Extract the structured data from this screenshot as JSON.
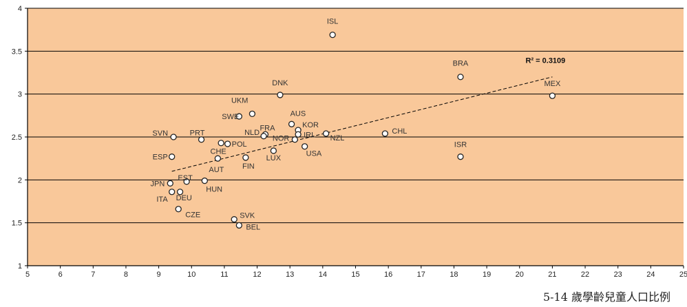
{
  "chart_data": {
    "type": "scatter",
    "title": "",
    "xlabel": "5-14 歲學齡兒童人口比例",
    "ylabel": "",
    "xlim": [
      5,
      25
    ],
    "ylim": [
      1,
      4
    ],
    "xticks": [
      5,
      6,
      7,
      8,
      9,
      10,
      11,
      12,
      13,
      14,
      15,
      16,
      17,
      18,
      19,
      20,
      21,
      22,
      23,
      24,
      25
    ],
    "yticks": [
      1,
      1.5,
      2,
      2.5,
      3,
      3.5,
      4
    ],
    "ytick_labels": [
      "1",
      "1.5",
      "2",
      "2.5",
      "3",
      "3.5",
      "4"
    ],
    "grid": "horizontal",
    "colors": {
      "plot_bg": "#f9c89a",
      "grid": "#000000",
      "marker_fill": "#ffffff",
      "marker_edge": "#222222",
      "trend": "#000000"
    },
    "trendline": {
      "x": [
        9.4,
        21.0
      ],
      "y": [
        2.1,
        3.2
      ],
      "label": "R² = 0.3109"
    },
    "points": [
      {
        "label": "ISL",
        "x": 14.3,
        "y": 3.69
      },
      {
        "label": "BRA",
        "x": 18.2,
        "y": 3.2
      },
      {
        "label": "MEX",
        "x": 21.0,
        "y": 2.98
      },
      {
        "label": "DNK",
        "x": 12.7,
        "y": 2.99
      },
      {
        "label": "UKM",
        "x": 11.85,
        "y": 2.77
      },
      {
        "label": "SWE",
        "x": 11.45,
        "y": 2.74
      },
      {
        "label": "AUS",
        "x": 13.05,
        "y": 2.65
      },
      {
        "label": "KOR",
        "x": 13.25,
        "y": 2.58
      },
      {
        "label": "FRA",
        "x": 12.25,
        "y": 2.53
      },
      {
        "label": "NLD",
        "x": 12.2,
        "y": 2.51
      },
      {
        "label": "IRL",
        "x": 13.25,
        "y": 2.53
      },
      {
        "label": "NZL",
        "x": 14.1,
        "y": 2.54
      },
      {
        "label": "CHL",
        "x": 15.9,
        "y": 2.54
      },
      {
        "label": "SVN",
        "x": 9.45,
        "y": 2.5
      },
      {
        "label": "PRT",
        "x": 10.3,
        "y": 2.47
      },
      {
        "label": "POL",
        "x": 11.1,
        "y": 2.42
      },
      {
        "label": "CHE",
        "x": 10.9,
        "y": 2.43
      },
      {
        "label": "NOR",
        "x": 13.15,
        "y": 2.47
      },
      {
        "label": "USA",
        "x": 13.45,
        "y": 2.39
      },
      {
        "label": "LUX",
        "x": 12.5,
        "y": 2.34
      },
      {
        "label": "ISR",
        "x": 18.2,
        "y": 2.27
      },
      {
        "label": "ESP",
        "x": 9.4,
        "y": 2.27
      },
      {
        "label": "AUT",
        "x": 10.8,
        "y": 2.25
      },
      {
        "label": "FIN",
        "x": 11.65,
        "y": 2.26
      },
      {
        "label": "EST",
        "x": 9.85,
        "y": 1.98
      },
      {
        "label": "HUN",
        "x": 10.4,
        "y": 1.99
      },
      {
        "label": "JPN",
        "x": 9.35,
        "y": 1.96
      },
      {
        "label": "ITA",
        "x": 9.4,
        "y": 1.86
      },
      {
        "label": "DEU",
        "x": 9.65,
        "y": 1.86
      },
      {
        "label": "CZE",
        "x": 9.6,
        "y": 1.66
      },
      {
        "label": "SVK",
        "x": 11.3,
        "y": 1.54
      },
      {
        "label": "BEL",
        "x": 11.45,
        "y": 1.47
      }
    ]
  }
}
